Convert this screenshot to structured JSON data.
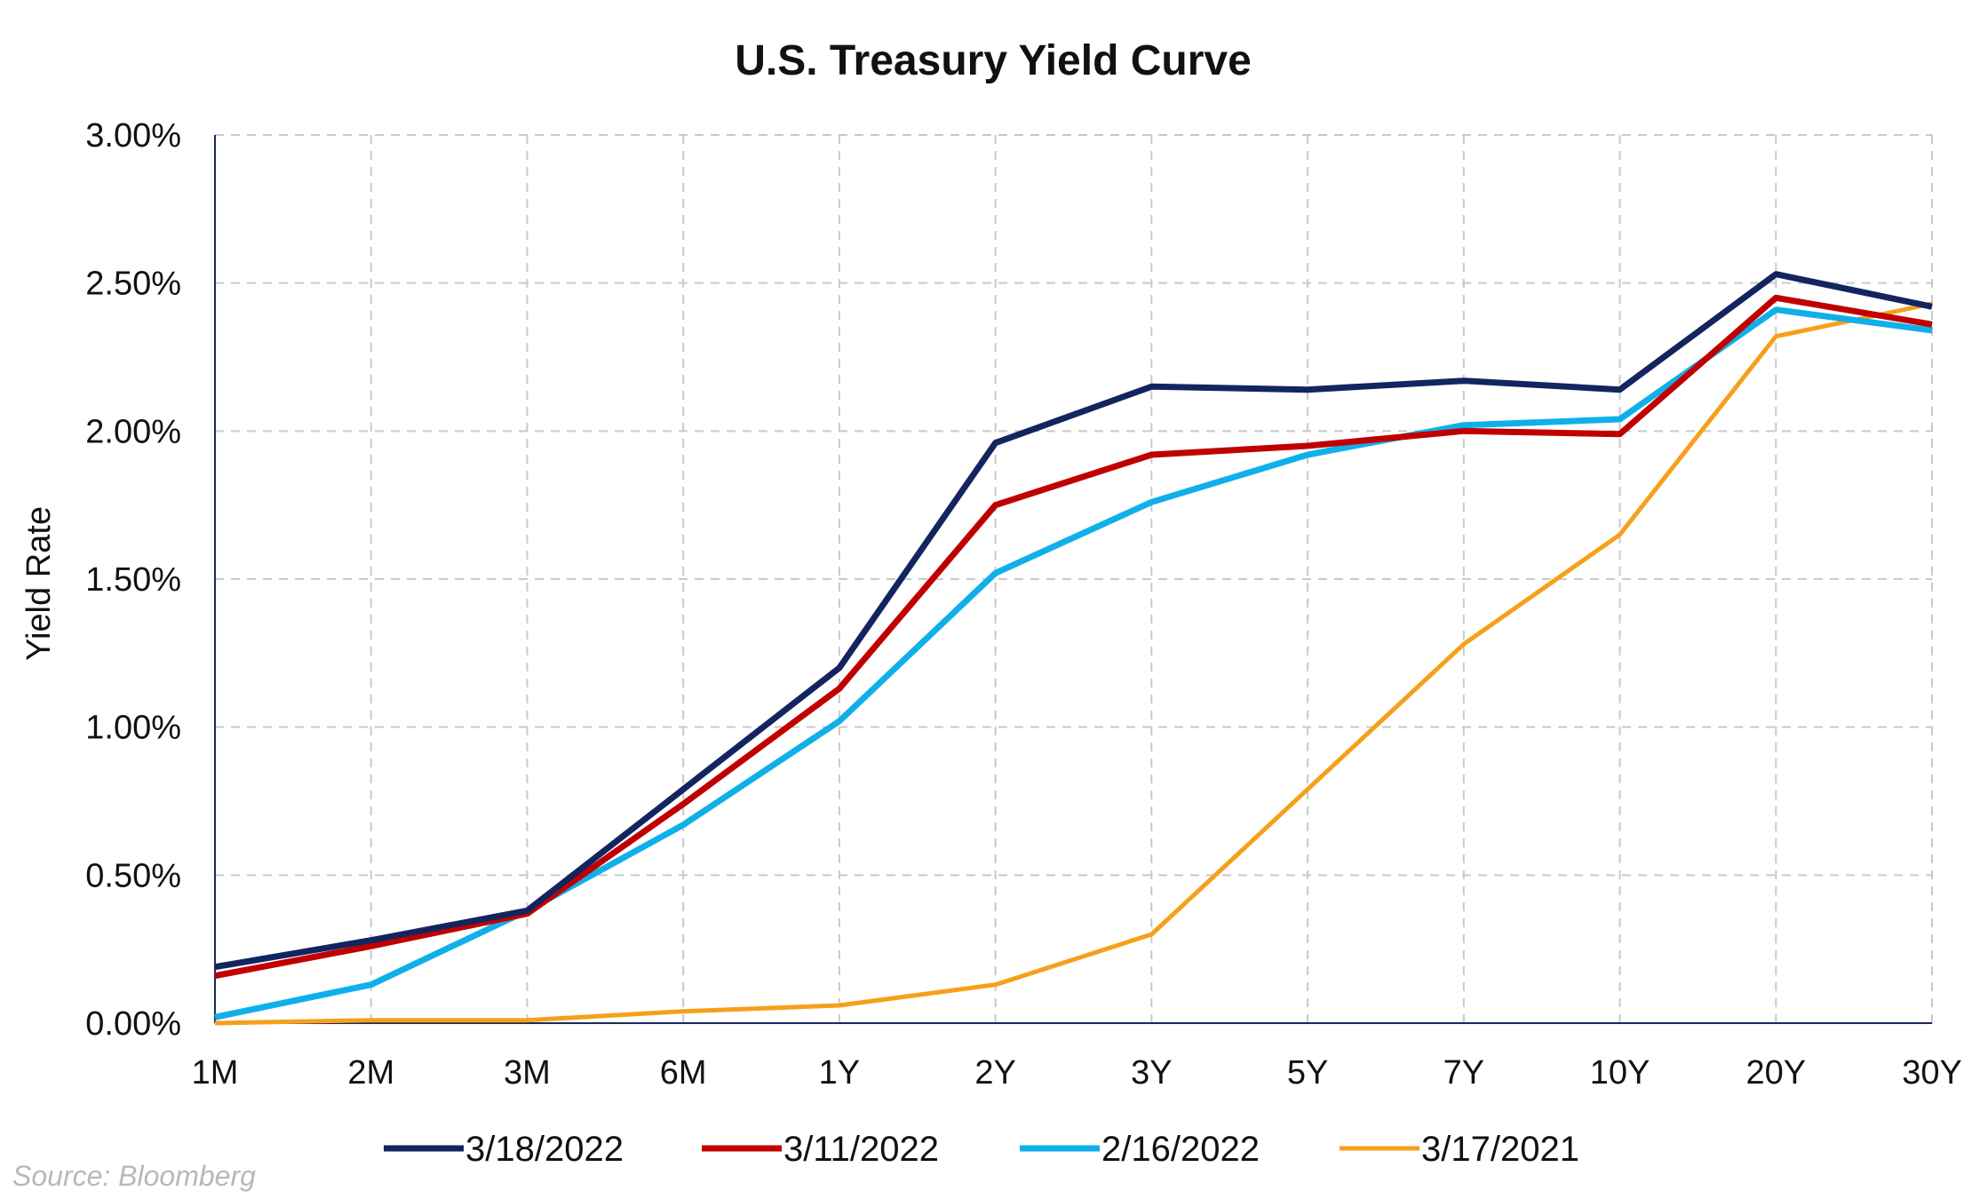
{
  "chart_data": {
    "type": "line",
    "title": "U.S. Treasury Yield Curve",
    "xlabel": "",
    "ylabel": "Yield Rate",
    "categories": [
      "1M",
      "2M",
      "3M",
      "6M",
      "1Y",
      "2Y",
      "3Y",
      "5Y",
      "7Y",
      "10Y",
      "20Y",
      "30Y"
    ],
    "ylim": [
      0,
      3
    ],
    "yticks": [
      0,
      0.5,
      1,
      1.5,
      2,
      2.5,
      3
    ],
    "ytick_labels": [
      "0.00%",
      "0.50%",
      "1.00%",
      "1.50%",
      "2.00%",
      "2.50%",
      "3.00%"
    ],
    "grid": true,
    "legend_position": "bottom",
    "series": [
      {
        "name": "3/18/2022",
        "color": "#13255f",
        "values": [
          0.19,
          0.28,
          0.38,
          0.79,
          1.2,
          1.96,
          2.15,
          2.14,
          2.17,
          2.14,
          2.53,
          2.42
        ]
      },
      {
        "name": "3/11/2022",
        "color": "#c00000",
        "values": [
          0.16,
          0.26,
          0.37,
          0.74,
          1.13,
          1.75,
          1.92,
          1.95,
          2.0,
          1.99,
          2.45,
          2.36
        ]
      },
      {
        "name": "2/16/2022",
        "color": "#0fb0ea",
        "values": [
          0.02,
          0.13,
          0.38,
          0.67,
          1.02,
          1.52,
          1.76,
          1.92,
          2.02,
          2.04,
          2.41,
          2.34
        ]
      },
      {
        "name": "3/17/2021",
        "color": "#f6a01a",
        "values": [
          0.0,
          0.01,
          0.01,
          0.04,
          0.06,
          0.13,
          0.3,
          0.79,
          1.28,
          1.65,
          2.32,
          2.43
        ]
      }
    ]
  },
  "source_note": "Source: Bloomberg"
}
